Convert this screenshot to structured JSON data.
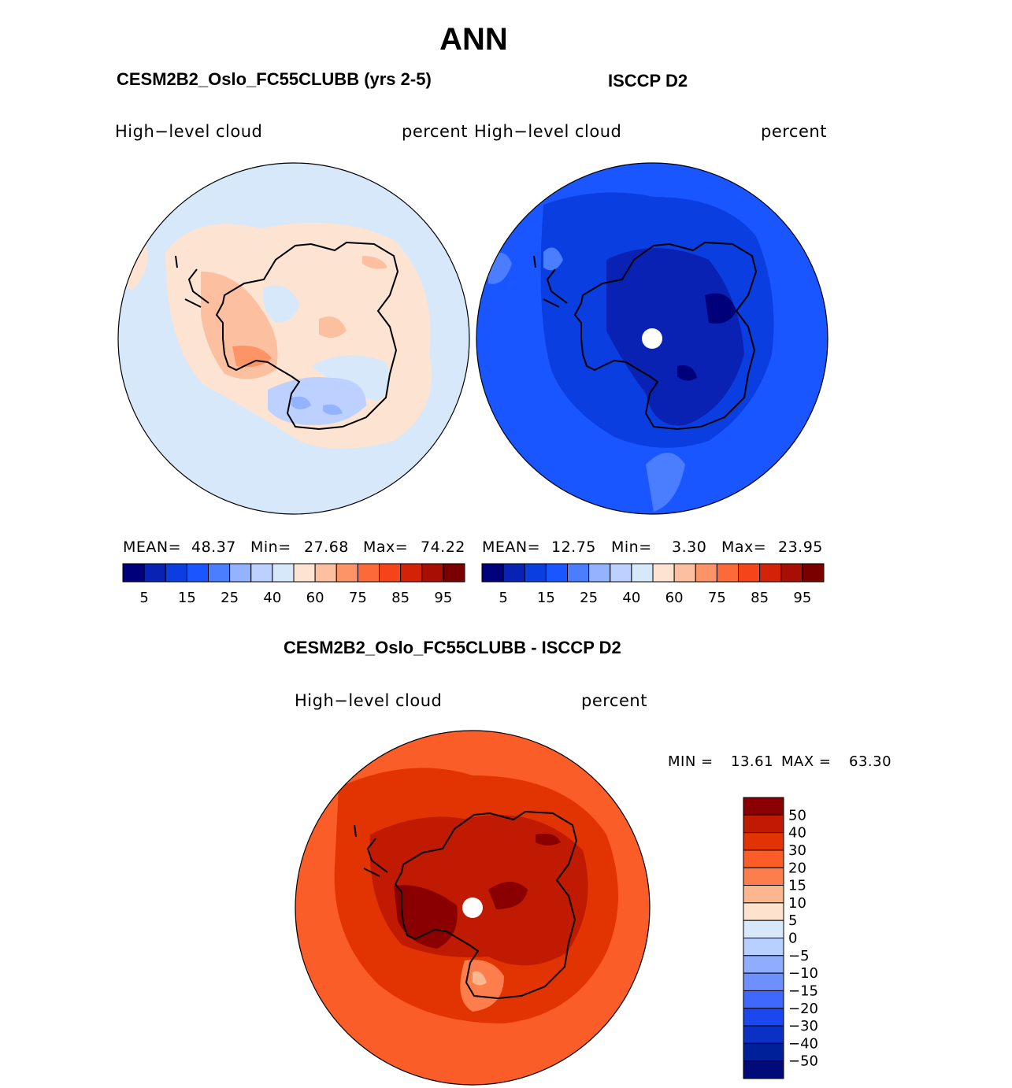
{
  "figure": {
    "season": "ANN",
    "panels": [
      {
        "title": "CESM2B2_Oslo_FC55CLUBB (yrs 2-5)",
        "variable": "High−level  cloud",
        "units": "percent",
        "stats": {
          "mean_label": "MEAN=",
          "mean": "48.37",
          "min_label": "Min=",
          "min": "27.68",
          "max_label": "Max=",
          "max": "74.22"
        }
      },
      {
        "title": "ISCCP D2",
        "variable": "High−level  cloud",
        "units": "percent",
        "stats": {
          "mean_label": "MEAN=",
          "mean": "12.75",
          "min_label": "Min=",
          "min": "3.30",
          "max_label": "Max=",
          "max": "23.95"
        }
      }
    ],
    "diff": {
      "title": "CESM2B2_Oslo_FC55CLUBB - ISCCP D2",
      "variable": "High−level  cloud",
      "units": "percent",
      "stats": {
        "min_label": "MIN =",
        "min": "13.61",
        "max_label": "MAX =",
        "max": "63.30"
      }
    }
  },
  "colorbars": {
    "abs": {
      "colors": [
        "#00007a",
        "#0a22b4",
        "#0a3ee0",
        "#1a56ff",
        "#4a7dff",
        "#93b2ff",
        "#bcd1ff",
        "#d7e8fb",
        "#fde3d1",
        "#fcc0a0",
        "#fd9468",
        "#fb6a38",
        "#f5441a",
        "#d42208",
        "#a80f02",
        "#7a0000"
      ],
      "tick_labels": [
        "5",
        "15",
        "25",
        "40",
        "60",
        "75",
        "85",
        "95"
      ]
    },
    "diff": {
      "colors": [
        "#8a0000",
        "#c01b02",
        "#e23402",
        "#fb5d28",
        "#fd7e4c",
        "#fcb78f",
        "#fde2cd",
        "#d7e8fb",
        "#b8d0ff",
        "#8fadff",
        "#6e90ff",
        "#3f68ff",
        "#1b48ee",
        "#0a30c4",
        "#001f9a",
        "#000a78"
      ],
      "tick_labels": [
        "50",
        "40",
        "30",
        "20",
        "15",
        "10",
        "5",
        "0",
        "−5",
        "−10",
        "−15",
        "−20",
        "−30",
        "−40",
        "−50"
      ]
    }
  }
}
